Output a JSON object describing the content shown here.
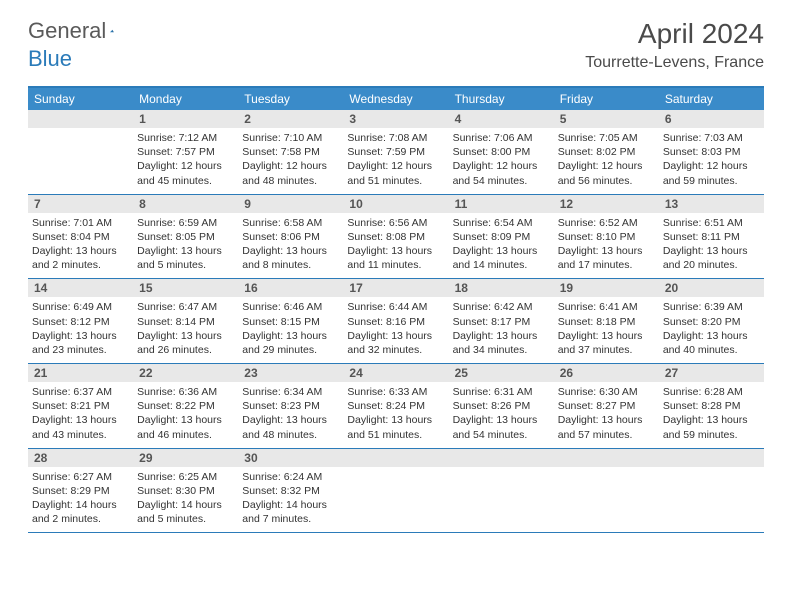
{
  "logo": {
    "text1": "General",
    "text2": "Blue"
  },
  "title": "April 2024",
  "location": "Tourrette-Levens, France",
  "colors": {
    "header_bg": "#3a8bc9",
    "border": "#2b7bb9",
    "daynum_bg": "#e8e8e8",
    "text": "#333333",
    "title_text": "#4a4a4a"
  },
  "day_names": [
    "Sunday",
    "Monday",
    "Tuesday",
    "Wednesday",
    "Thursday",
    "Friday",
    "Saturday"
  ],
  "weeks": [
    [
      {
        "n": "",
        "sr": "",
        "ss": "",
        "dl": ""
      },
      {
        "n": "1",
        "sr": "7:12 AM",
        "ss": "7:57 PM",
        "dl": "12 hours and 45 minutes."
      },
      {
        "n": "2",
        "sr": "7:10 AM",
        "ss": "7:58 PM",
        "dl": "12 hours and 48 minutes."
      },
      {
        "n": "3",
        "sr": "7:08 AM",
        "ss": "7:59 PM",
        "dl": "12 hours and 51 minutes."
      },
      {
        "n": "4",
        "sr": "7:06 AM",
        "ss": "8:00 PM",
        "dl": "12 hours and 54 minutes."
      },
      {
        "n": "5",
        "sr": "7:05 AM",
        "ss": "8:02 PM",
        "dl": "12 hours and 56 minutes."
      },
      {
        "n": "6",
        "sr": "7:03 AM",
        "ss": "8:03 PM",
        "dl": "12 hours and 59 minutes."
      }
    ],
    [
      {
        "n": "7",
        "sr": "7:01 AM",
        "ss": "8:04 PM",
        "dl": "13 hours and 2 minutes."
      },
      {
        "n": "8",
        "sr": "6:59 AM",
        "ss": "8:05 PM",
        "dl": "13 hours and 5 minutes."
      },
      {
        "n": "9",
        "sr": "6:58 AM",
        "ss": "8:06 PM",
        "dl": "13 hours and 8 minutes."
      },
      {
        "n": "10",
        "sr": "6:56 AM",
        "ss": "8:08 PM",
        "dl": "13 hours and 11 minutes."
      },
      {
        "n": "11",
        "sr": "6:54 AM",
        "ss": "8:09 PM",
        "dl": "13 hours and 14 minutes."
      },
      {
        "n": "12",
        "sr": "6:52 AM",
        "ss": "8:10 PM",
        "dl": "13 hours and 17 minutes."
      },
      {
        "n": "13",
        "sr": "6:51 AM",
        "ss": "8:11 PM",
        "dl": "13 hours and 20 minutes."
      }
    ],
    [
      {
        "n": "14",
        "sr": "6:49 AM",
        "ss": "8:12 PM",
        "dl": "13 hours and 23 minutes."
      },
      {
        "n": "15",
        "sr": "6:47 AM",
        "ss": "8:14 PM",
        "dl": "13 hours and 26 minutes."
      },
      {
        "n": "16",
        "sr": "6:46 AM",
        "ss": "8:15 PM",
        "dl": "13 hours and 29 minutes."
      },
      {
        "n": "17",
        "sr": "6:44 AM",
        "ss": "8:16 PM",
        "dl": "13 hours and 32 minutes."
      },
      {
        "n": "18",
        "sr": "6:42 AM",
        "ss": "8:17 PM",
        "dl": "13 hours and 34 minutes."
      },
      {
        "n": "19",
        "sr": "6:41 AM",
        "ss": "8:18 PM",
        "dl": "13 hours and 37 minutes."
      },
      {
        "n": "20",
        "sr": "6:39 AM",
        "ss": "8:20 PM",
        "dl": "13 hours and 40 minutes."
      }
    ],
    [
      {
        "n": "21",
        "sr": "6:37 AM",
        "ss": "8:21 PM",
        "dl": "13 hours and 43 minutes."
      },
      {
        "n": "22",
        "sr": "6:36 AM",
        "ss": "8:22 PM",
        "dl": "13 hours and 46 minutes."
      },
      {
        "n": "23",
        "sr": "6:34 AM",
        "ss": "8:23 PM",
        "dl": "13 hours and 48 minutes."
      },
      {
        "n": "24",
        "sr": "6:33 AM",
        "ss": "8:24 PM",
        "dl": "13 hours and 51 minutes."
      },
      {
        "n": "25",
        "sr": "6:31 AM",
        "ss": "8:26 PM",
        "dl": "13 hours and 54 minutes."
      },
      {
        "n": "26",
        "sr": "6:30 AM",
        "ss": "8:27 PM",
        "dl": "13 hours and 57 minutes."
      },
      {
        "n": "27",
        "sr": "6:28 AM",
        "ss": "8:28 PM",
        "dl": "13 hours and 59 minutes."
      }
    ],
    [
      {
        "n": "28",
        "sr": "6:27 AM",
        "ss": "8:29 PM",
        "dl": "14 hours and 2 minutes."
      },
      {
        "n": "29",
        "sr": "6:25 AM",
        "ss": "8:30 PM",
        "dl": "14 hours and 5 minutes."
      },
      {
        "n": "30",
        "sr": "6:24 AM",
        "ss": "8:32 PM",
        "dl": "14 hours and 7 minutes."
      },
      {
        "n": "",
        "sr": "",
        "ss": "",
        "dl": ""
      },
      {
        "n": "",
        "sr": "",
        "ss": "",
        "dl": ""
      },
      {
        "n": "",
        "sr": "",
        "ss": "",
        "dl": ""
      },
      {
        "n": "",
        "sr": "",
        "ss": "",
        "dl": ""
      }
    ]
  ],
  "labels": {
    "sunrise": "Sunrise: ",
    "sunset": "Sunset: ",
    "daylight": "Daylight: "
  }
}
